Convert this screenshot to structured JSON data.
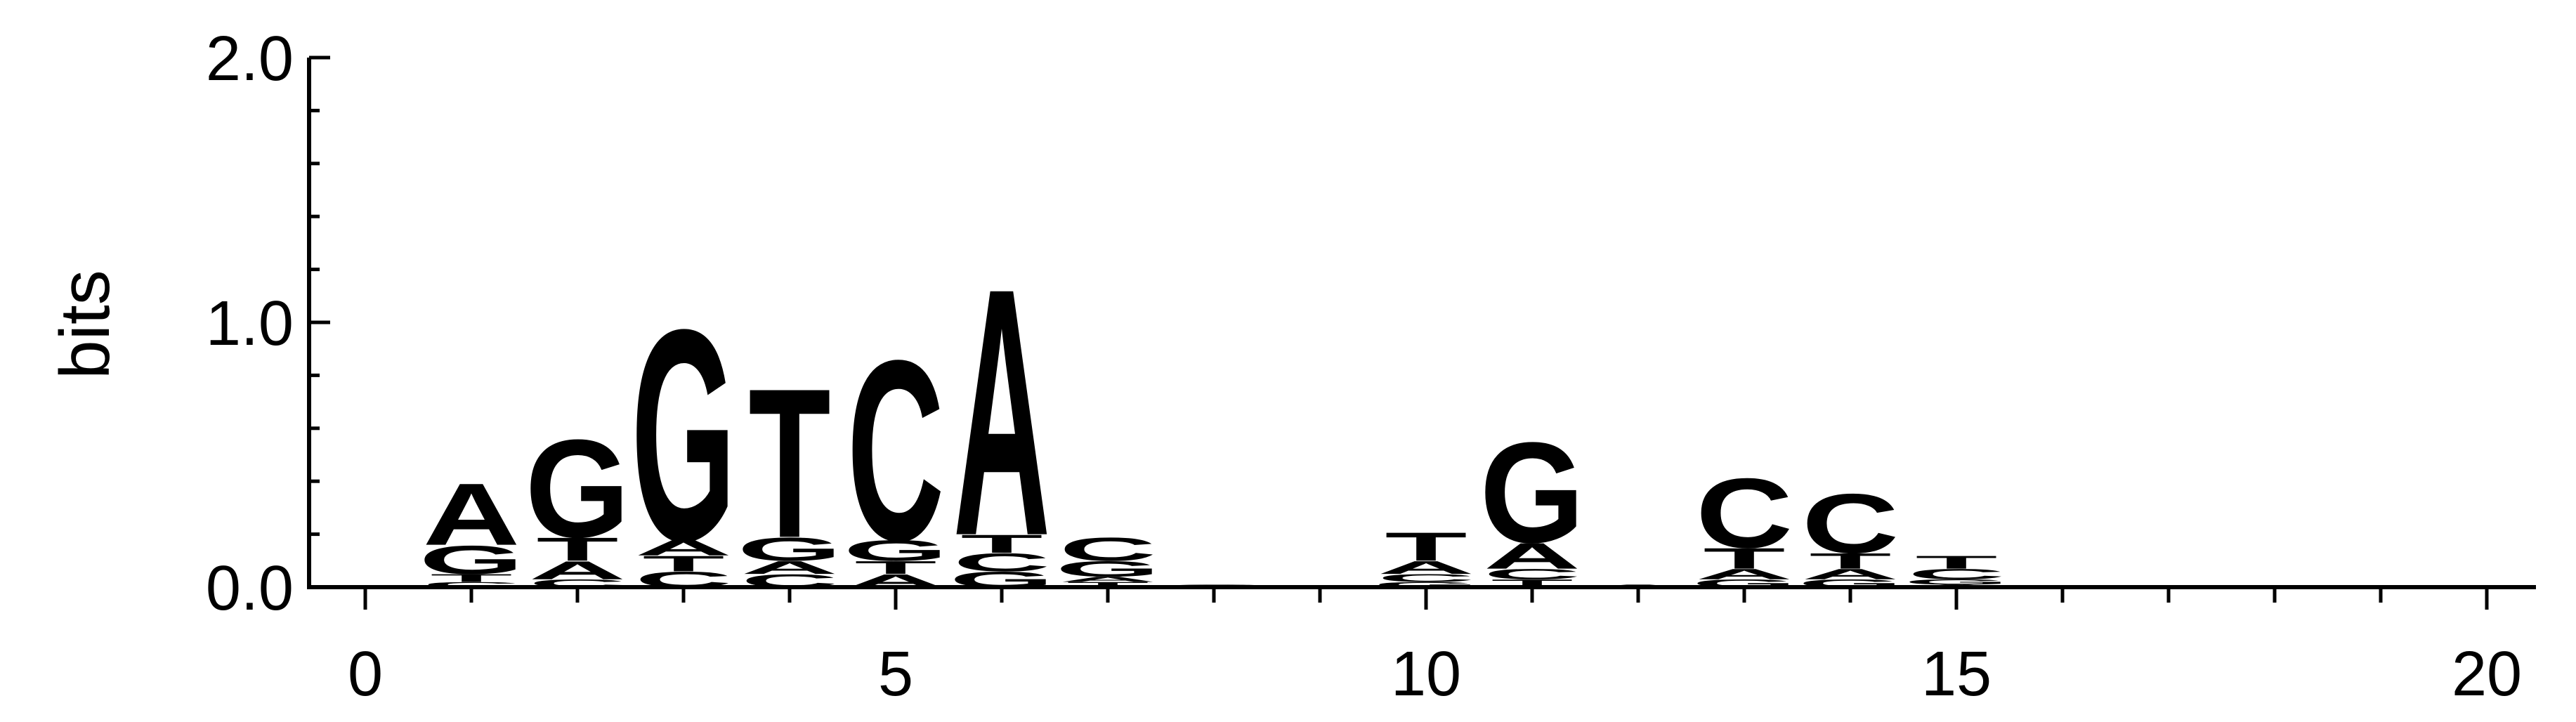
{
  "chart_data": {
    "type": "sequence-logo",
    "ylabel": "bits",
    "ylim": [
      0,
      2.0
    ],
    "xlim": [
      -0.5,
      20.5
    ],
    "yticks": [
      {
        "value": 0,
        "label": "0.0"
      },
      {
        "value": 1.0,
        "label": "1.0"
      },
      {
        "value": 2.0,
        "label": "2.0"
      }
    ],
    "xticks": [
      {
        "value": 0,
        "label": "0"
      },
      {
        "value": 5,
        "label": "5"
      },
      {
        "value": 10,
        "label": "10"
      },
      {
        "value": 15,
        "label": "15"
      },
      {
        "value": 20,
        "label": "20"
      }
    ],
    "colors": {
      "A": "#0a8a0a",
      "C": "#0000ee",
      "G": "#ffa500",
      "T": "#ee0000"
    },
    "positions": [
      {
        "pos": 1,
        "letters": [
          {
            "l": "C",
            "h": 0.02
          },
          {
            "l": "T",
            "h": 0.03
          },
          {
            "l": "G",
            "h": 0.11
          },
          {
            "l": "A",
            "h": 0.24
          }
        ]
      },
      {
        "pos": 2,
        "letters": [
          {
            "l": "C",
            "h": 0.03
          },
          {
            "l": "A",
            "h": 0.07
          },
          {
            "l": "T",
            "h": 0.09
          },
          {
            "l": "G",
            "h": 0.38
          }
        ]
      },
      {
        "pos": 3,
        "letters": [
          {
            "l": "C",
            "h": 0.06
          },
          {
            "l": "T",
            "h": 0.06
          },
          {
            "l": "A",
            "h": 0.06
          },
          {
            "l": "G",
            "h": 0.82
          }
        ]
      },
      {
        "pos": 4,
        "letters": [
          {
            "l": "C",
            "h": 0.05
          },
          {
            "l": "A",
            "h": 0.05
          },
          {
            "l": "G",
            "h": 0.09
          },
          {
            "l": "T",
            "h": 0.58
          }
        ]
      },
      {
        "pos": 5,
        "letters": [
          {
            "l": "A",
            "h": 0.05
          },
          {
            "l": "T",
            "h": 0.05
          },
          {
            "l": "G",
            "h": 0.08
          },
          {
            "l": "C",
            "h": 0.7
          }
        ]
      },
      {
        "pos": 6,
        "letters": [
          {
            "l": "G",
            "h": 0.06
          },
          {
            "l": "C",
            "h": 0.07
          },
          {
            "l": "T",
            "h": 0.07
          },
          {
            "l": "A",
            "h": 0.96
          }
        ]
      },
      {
        "pos": 7,
        "letters": [
          {
            "l": "T",
            "h": 0.02
          },
          {
            "l": "A",
            "h": 0.02
          },
          {
            "l": "G",
            "h": 0.06
          },
          {
            "l": "C",
            "h": 0.09
          }
        ]
      },
      {
        "pos": 8,
        "letters": [
          {
            "l": "C",
            "h": 0.01
          }
        ]
      },
      {
        "pos": 10,
        "letters": [
          {
            "l": "G",
            "h": 0.02
          },
          {
            "l": "C",
            "h": 0.03
          },
          {
            "l": "A",
            "h": 0.05
          },
          {
            "l": "T",
            "h": 0.11
          }
        ]
      },
      {
        "pos": 11,
        "letters": [
          {
            "l": "T",
            "h": 0.03
          },
          {
            "l": "C",
            "h": 0.04
          },
          {
            "l": "A",
            "h": 0.1
          },
          {
            "l": "G",
            "h": 0.39
          }
        ]
      },
      {
        "pos": 12,
        "letters": [
          {
            "l": "A",
            "h": 0.01
          }
        ]
      },
      {
        "pos": 13,
        "letters": [
          {
            "l": "G",
            "h": 0.03
          },
          {
            "l": "A",
            "h": 0.04
          },
          {
            "l": "T",
            "h": 0.08
          },
          {
            "l": "C",
            "h": 0.27
          }
        ]
      },
      {
        "pos": 14,
        "letters": [
          {
            "l": "G",
            "h": 0.03
          },
          {
            "l": "A",
            "h": 0.04
          },
          {
            "l": "T",
            "h": 0.06
          },
          {
            "l": "C",
            "h": 0.23
          }
        ]
      },
      {
        "pos": 15,
        "letters": [
          {
            "l": "A",
            "h": 0.01
          },
          {
            "l": "G",
            "h": 0.02
          },
          {
            "l": "C",
            "h": 0.04
          },
          {
            "l": "T",
            "h": 0.05
          }
        ]
      }
    ]
  }
}
